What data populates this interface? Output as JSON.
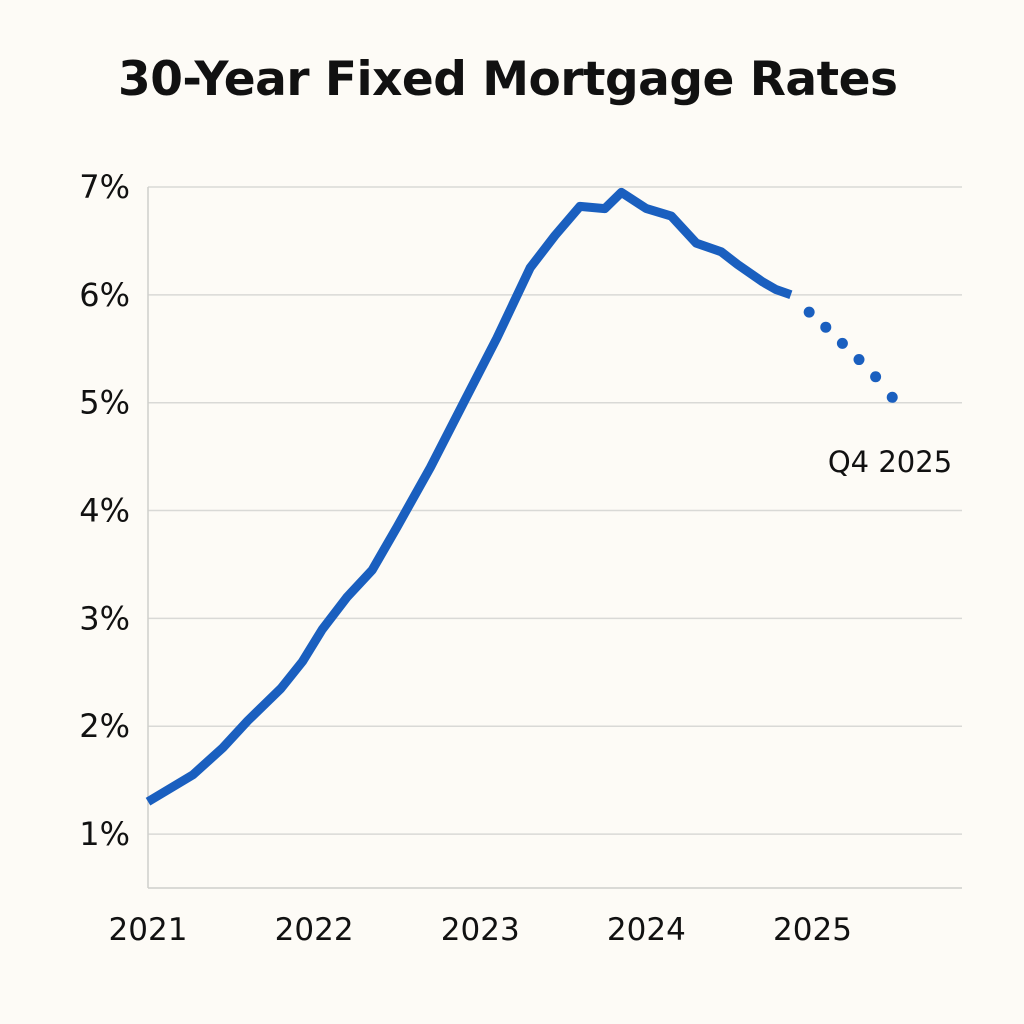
{
  "chart_data": {
    "type": "line",
    "title": "30-Year Fixed Mortgage Rates",
    "xlabel": "",
    "ylabel": "",
    "xlim": [
      2021.0,
      2025.9
    ],
    "ylim": [
      0.5,
      7.0
    ],
    "x_ticks": [
      2021,
      2022,
      2023,
      2024,
      2025
    ],
    "x_tick_labels": [
      "2021",
      "2022",
      "2023",
      "2024",
      "2025"
    ],
    "y_ticks": [
      1,
      2,
      3,
      4,
      5,
      6,
      7
    ],
    "y_tick_labels": [
      "1%",
      "2%",
      "3%",
      "4%",
      "5%",
      "6%",
      "7%"
    ],
    "grid": "horizontal",
    "legend": "none",
    "line_color": "#1a5fbf",
    "series": [
      {
        "style": "solid",
        "x": [
          2021.0,
          2021.27,
          2021.45,
          2021.6,
          2021.8,
          2021.93,
          2022.05,
          2022.2,
          2022.35,
          2022.5,
          2022.7,
          2022.9,
          2023.1,
          2023.3,
          2023.45,
          2023.6,
          2023.75,
          2023.85,
          2024.0,
          2024.15,
          2024.3,
          2024.45,
          2024.55,
          2024.7,
          2024.78,
          2024.87
        ],
        "y": [
          1.3,
          1.55,
          1.8,
          2.05,
          2.35,
          2.6,
          2.9,
          3.2,
          3.45,
          3.85,
          4.4,
          5.0,
          5.6,
          6.25,
          6.55,
          6.82,
          6.8,
          6.95,
          6.8,
          6.73,
          6.48,
          6.4,
          6.28,
          6.12,
          6.05,
          6.0
        ]
      },
      {
        "style": "dotted",
        "x": [
          2024.87,
          2024.98,
          2025.08,
          2025.18,
          2025.28,
          2025.38,
          2025.48
        ],
        "y": [
          6.0,
          5.84,
          5.7,
          5.55,
          5.4,
          5.24,
          5.05
        ]
      }
    ],
    "annotations": [
      {
        "text": "Q4 2025",
        "x": 2025.48,
        "y": 5.05
      }
    ]
  }
}
